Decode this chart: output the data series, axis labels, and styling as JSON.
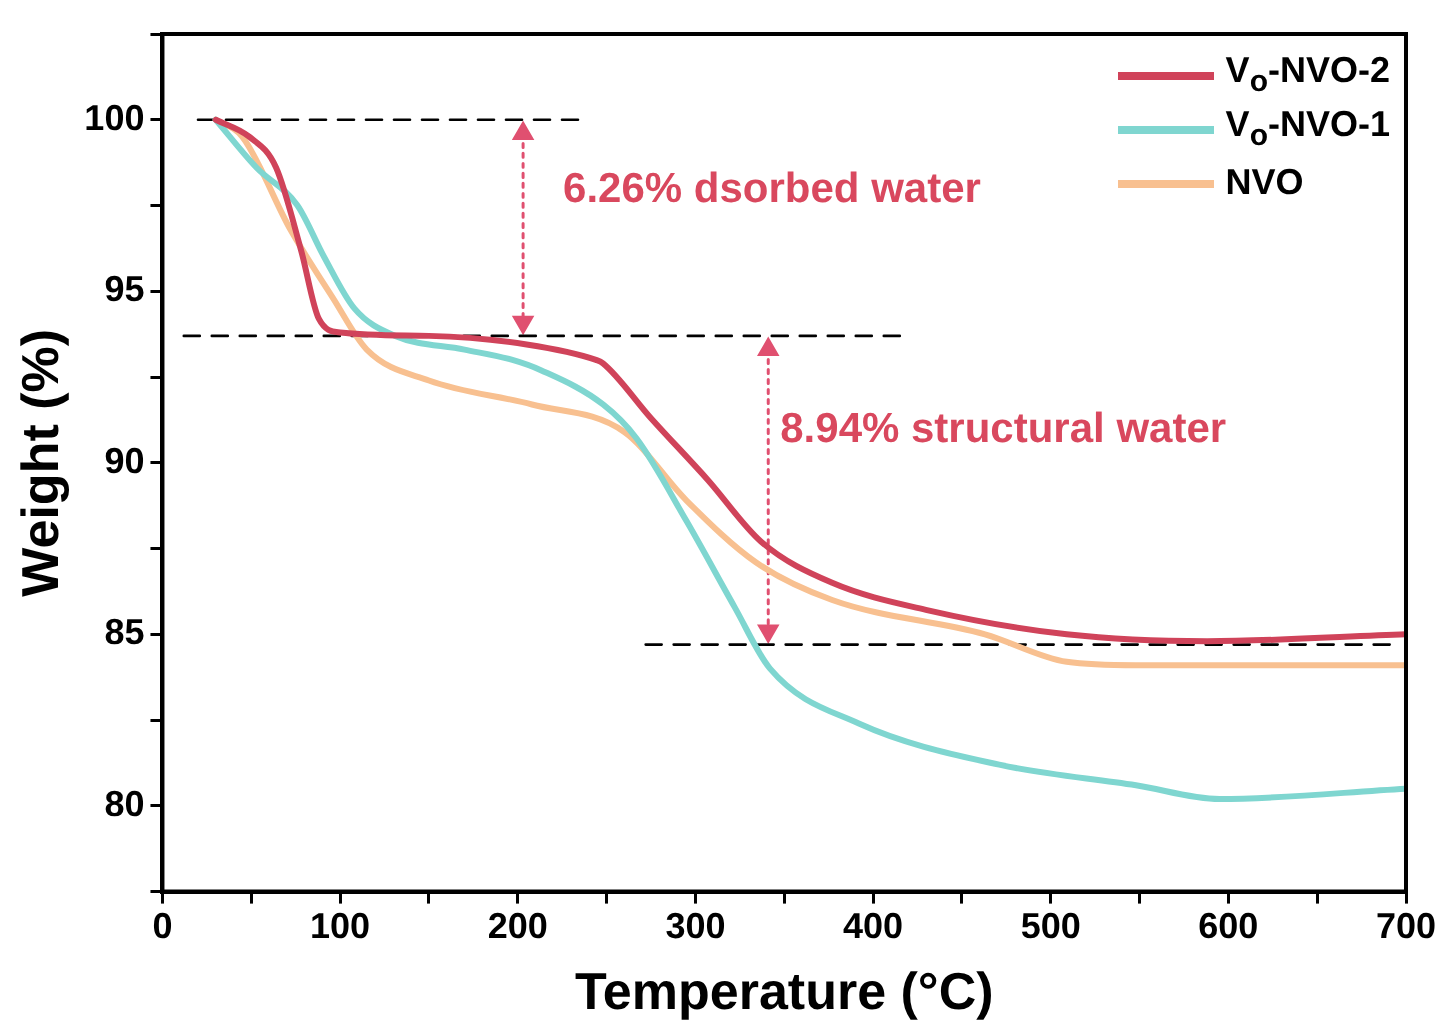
{
  "chart_data": {
    "type": "line",
    "xlabel": "Temperature (°C)",
    "ylabel": "Weight (%)",
    "xlim": [
      0,
      700
    ],
    "ylim": [
      77.5,
      102.5
    ],
    "xticks": [
      0,
      {
        "value": 50,
        "label": null
      },
      100,
      {
        "value": 150,
        "label": null
      },
      200,
      {
        "value": 250,
        "label": null
      },
      300,
      {
        "value": 350,
        "label": null
      },
      400,
      {
        "value": 450,
        "label": null
      },
      500,
      {
        "value": 550,
        "label": null
      },
      600,
      {
        "value": 650,
        "label": null
      },
      700
    ],
    "yticks": [
      {
        "value": 77.5,
        "label": null
      },
      80,
      {
        "value": 82.5,
        "label": null
      },
      85,
      {
        "value": 87.5,
        "label": null
      },
      90,
      {
        "value": 92.5,
        "label": null
      },
      95,
      {
        "value": 97.5,
        "label": null
      },
      100,
      {
        "value": 102.5,
        "label": null
      }
    ],
    "legend": "top right",
    "marker": "none",
    "line_style": "solid",
    "series": [
      {
        "name": "V$_{o}$-NVO-2",
        "color": "#d0435a",
        "x": [
          30,
          49,
          64,
          78,
          88,
          100,
          150,
          205,
          244,
          248,
          275,
          307,
          337,
          377,
          431,
          509,
          588,
          700
        ],
        "values": [
          100,
          99.5,
          98.6,
          96.2,
          94.2,
          93.8,
          93.7,
          93.45,
          93.0,
          92.9,
          91.3,
          89.5,
          87.7,
          86.5,
          85.7,
          85.0,
          84.8,
          85.0
        ]
      },
      {
        "name": "V$_{o}$-NVO-1",
        "color": "#7fd6d0",
        "x": [
          30,
          53,
          76,
          91,
          108,
          131,
          170,
          197,
          213,
          248,
          267,
          295,
          322,
          342,
          392,
          471,
          548,
          595,
          700
        ],
        "values": [
          100,
          98.6,
          97.5,
          96.0,
          94.5,
          93.7,
          93.3,
          93.0,
          92.7,
          91.7,
          90.7,
          88.3,
          85.8,
          84.0,
          82.4,
          81.2,
          80.6,
          80.2,
          80.5
        ]
      },
      {
        "name": "NVO",
        "color": "#f8c090",
        "x": [
          30,
          45,
          72,
          96,
          115,
          150,
          208,
          260,
          295,
          334,
          377,
          463,
          509,
          548,
          700
        ],
        "values": [
          100,
          99.5,
          96.8,
          94.8,
          93.3,
          92.4,
          91.7,
          90.9,
          88.9,
          87.1,
          86.0,
          85.0,
          84.2,
          84.1,
          84.1
        ]
      },
      {
        "color": "#000000",
        "line_style": "dashed",
        "x": [
          20,
          234
        ],
        "values": [
          100,
          100
        ]
      },
      {
        "color": "#000000",
        "line_style": "dashed",
        "x": [
          12,
          416
        ],
        "values": [
          93.7,
          93.7
        ]
      },
      {
        "color": "#000000",
        "line_style": "dashed",
        "x": [
          272,
          697
        ],
        "values": [
          84.7,
          84.7
        ]
      },
      {
        "color": "#e05070",
        "line_style": "dotted",
        "marker": "triangle",
        "x": [
          203,
          203
        ],
        "values": [
          99.6,
          94.1
        ]
      },
      {
        "color": "#e05070",
        "line_style": "dotted",
        "marker": "triangle",
        "x": [
          341,
          341
        ],
        "values": [
          93.3,
          85.1
        ]
      }
    ],
    "annotations": [
      "6.26% dsorbed water",
      "8.94% structural water"
    ]
  }
}
